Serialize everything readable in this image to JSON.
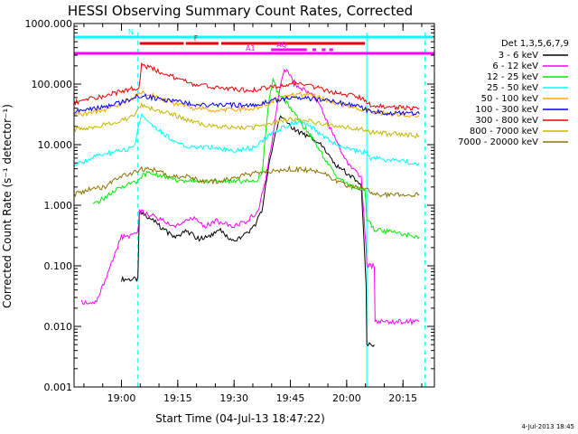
{
  "chart_data": {
    "type": "line",
    "title": "HESSI Observing Summary Count Rates, Corrected",
    "xlabel": "Start Time (04-Jul-13 18:47:22)",
    "ylabel": "Corrected Count Rate (s⁻¹ detector⁻¹)",
    "yscale": "log",
    "ylim": [
      0.001,
      1000
    ],
    "xlim_min": [
      0,
      96
    ],
    "y_ticks": [
      "0.001",
      "0.010",
      "0.100",
      "1.000",
      "10.000",
      "100.000",
      "1000.000"
    ],
    "x_ticks": [
      {
        "label": "19:00",
        "t": 12.63
      },
      {
        "label": "19:15",
        "t": 27.63
      },
      {
        "label": "19:30",
        "t": 42.63
      },
      {
        "label": "19:45",
        "t": 57.63
      },
      {
        "label": "20:00",
        "t": 72.63
      },
      {
        "label": "20:15",
        "t": 87.63
      }
    ],
    "legend_title": "Det 1,3,5,6,7,9",
    "legend_position": "right",
    "timestamp": "4-Jul-2013 18:45",
    "vertical_markers": [
      {
        "t": 17.0,
        "style": "dashed",
        "color": "#00ffff"
      },
      {
        "t": 78.0,
        "style": "solid",
        "color": "#00ffff"
      },
      {
        "t": 93.5,
        "style": "dashed",
        "color": "#00ffff"
      }
    ],
    "flags": [
      {
        "label": "N",
        "color": "#00ffff",
        "segments": [
          [
            0,
            17.5
          ],
          [
            17.5,
            78
          ],
          [
            78,
            95.5
          ]
        ]
      },
      {
        "label": "F",
        "color": "#ee0000",
        "segments": [
          [
            17.5,
            29.2
          ],
          [
            29.8,
            38.5
          ],
          [
            39.2,
            77.5
          ]
        ]
      },
      {
        "label": "AQ",
        "color": "#ff00ff",
        "segments": [
          [
            52.5,
            62
          ],
          [
            63.5,
            64.5
          ],
          [
            66,
            67
          ],
          [
            68,
            69
          ]
        ]
      },
      {
        "label": "A1",
        "color": "#ff00ff",
        "segments": [
          [
            0,
            96
          ]
        ]
      }
    ],
    "series": [
      {
        "name": "3 - 6 keV",
        "color": "#000000",
        "points": [
          [
            12.6,
            0.06
          ],
          [
            17,
            0.06
          ],
          [
            17.4,
            0.8
          ],
          [
            19,
            0.7
          ],
          [
            22,
            0.5
          ],
          [
            25,
            0.35
          ],
          [
            27,
            0.3
          ],
          [
            30,
            0.38
          ],
          [
            33,
            0.28
          ],
          [
            36,
            0.3
          ],
          [
            39,
            0.38
          ],
          [
            42,
            0.25
          ],
          [
            45,
            0.3
          ],
          [
            48,
            0.45
          ],
          [
            50,
            0.8
          ],
          [
            52,
            5
          ],
          [
            54,
            18
          ],
          [
            55,
            28
          ],
          [
            57,
            22
          ],
          [
            59,
            17
          ],
          [
            62,
            14
          ],
          [
            66,
            10
          ],
          [
            70,
            4.5
          ],
          [
            74,
            3
          ],
          [
            76.5,
            2.2
          ],
          [
            77.8,
            0.05
          ],
          [
            78,
            0.005
          ],
          [
            80,
            0.005
          ]
        ]
      },
      {
        "name": "6 - 12 keV",
        "color": "#ff00ff",
        "points": [
          [
            2,
            0.025
          ],
          [
            6,
            0.025
          ],
          [
            12.6,
            0.3
          ],
          [
            15,
            0.3
          ],
          [
            17,
            0.35
          ],
          [
            17.4,
            0.8
          ],
          [
            20,
            0.7
          ],
          [
            24,
            0.55
          ],
          [
            27,
            0.45
          ],
          [
            30,
            0.55
          ],
          [
            32,
            0.6
          ],
          [
            35,
            0.45
          ],
          [
            38,
            0.55
          ],
          [
            42,
            0.45
          ],
          [
            46,
            0.55
          ],
          [
            49,
            0.8
          ],
          [
            51,
            2.5
          ],
          [
            53,
            15
          ],
          [
            55,
            100
          ],
          [
            56,
            180
          ],
          [
            57,
            150
          ],
          [
            59,
            100
          ],
          [
            62,
            75
          ],
          [
            65,
            55
          ],
          [
            68,
            20
          ],
          [
            70,
            12
          ],
          [
            72,
            6
          ],
          [
            74,
            4
          ],
          [
            76.5,
            3
          ],
          [
            77.8,
            0.2
          ],
          [
            78,
            0.1
          ],
          [
            80,
            0.1
          ],
          [
            80.2,
            0.012
          ],
          [
            92,
            0.012
          ]
        ]
      },
      {
        "name": "12 - 25 keV",
        "color": "#00ee00",
        "points": [
          [
            5,
            1
          ],
          [
            12.6,
            2
          ],
          [
            17,
            2.5
          ],
          [
            18,
            3
          ],
          [
            20,
            3.5
          ],
          [
            24,
            3
          ],
          [
            28,
            2.5
          ],
          [
            32,
            2.5
          ],
          [
            36,
            2.5
          ],
          [
            40,
            2.5
          ],
          [
            44,
            2.5
          ],
          [
            48,
            2.5
          ],
          [
            50,
            3
          ],
          [
            52,
            60
          ],
          [
            53,
            120
          ],
          [
            54,
            80
          ],
          [
            56,
            55
          ],
          [
            58,
            38
          ],
          [
            60,
            25
          ],
          [
            63,
            14
          ],
          [
            66,
            7
          ],
          [
            70,
            3
          ],
          [
            74,
            2
          ],
          [
            77.5,
            1.8
          ],
          [
            78,
            0.6
          ],
          [
            80,
            0.4
          ],
          [
            85,
            0.35
          ],
          [
            92,
            0.3
          ]
        ]
      },
      {
        "name": "25 - 50 keV",
        "color": "#00ffff",
        "points": [
          [
            0,
            4.5
          ],
          [
            6,
            6.5
          ],
          [
            12.6,
            8
          ],
          [
            16,
            9
          ],
          [
            17.3,
            22
          ],
          [
            18,
            30
          ],
          [
            20,
            22
          ],
          [
            24,
            15
          ],
          [
            28,
            10
          ],
          [
            32,
            9
          ],
          [
            36,
            9
          ],
          [
            40,
            8.5
          ],
          [
            44,
            8
          ],
          [
            48,
            9
          ],
          [
            52,
            14
          ],
          [
            54,
            17
          ],
          [
            56,
            20
          ],
          [
            58,
            22
          ],
          [
            60,
            24
          ],
          [
            62,
            22
          ],
          [
            64,
            18
          ],
          [
            66,
            14
          ],
          [
            70,
            10
          ],
          [
            74,
            8
          ],
          [
            78,
            7.5
          ],
          [
            79,
            6
          ],
          [
            85,
            5.5
          ],
          [
            92,
            5
          ]
        ]
      },
      {
        "name": "50 - 100 keV",
        "color": "#ffa500",
        "points": [
          [
            0,
            30
          ],
          [
            6,
            35
          ],
          [
            12.6,
            45
          ],
          [
            15,
            55
          ],
          [
            17.3,
            70
          ],
          [
            18,
            75
          ],
          [
            20,
            68
          ],
          [
            24,
            55
          ],
          [
            28,
            45
          ],
          [
            32,
            40
          ],
          [
            36,
            38
          ],
          [
            40,
            38
          ],
          [
            44,
            38
          ],
          [
            48,
            40
          ],
          [
            52,
            48
          ],
          [
            55,
            58
          ],
          [
            58,
            65
          ],
          [
            61,
            68
          ],
          [
            64,
            64
          ],
          [
            67,
            55
          ],
          [
            70,
            48
          ],
          [
            74,
            42
          ],
          [
            77,
            38
          ],
          [
            79,
            35
          ],
          [
            85,
            32
          ],
          [
            92,
            30
          ]
        ]
      },
      {
        "name": "100 - 300 keV",
        "color": "#0000ee",
        "points": [
          [
            0,
            35
          ],
          [
            6,
            40
          ],
          [
            12.6,
            50
          ],
          [
            16,
            60
          ],
          [
            18,
            65
          ],
          [
            22,
            58
          ],
          [
            26,
            52
          ],
          [
            30,
            48
          ],
          [
            34,
            46
          ],
          [
            38,
            45
          ],
          [
            42,
            45
          ],
          [
            46,
            45
          ],
          [
            50,
            48
          ],
          [
            54,
            55
          ],
          [
            58,
            60
          ],
          [
            62,
            58
          ],
          [
            66,
            55
          ],
          [
            70,
            50
          ],
          [
            74,
            45
          ],
          [
            77,
            40
          ],
          [
            79,
            35
          ],
          [
            85,
            33
          ],
          [
            92,
            32
          ]
        ]
      },
      {
        "name": "300 - 800 keV",
        "color": "#ee0000",
        "points": [
          [
            0,
            50
          ],
          [
            6,
            60
          ],
          [
            12.6,
            75
          ],
          [
            16,
            85
          ],
          [
            17.3,
            90
          ],
          [
            18,
            200
          ],
          [
            20,
            190
          ],
          [
            24,
            150
          ],
          [
            28,
            120
          ],
          [
            32,
            100
          ],
          [
            36,
            90
          ],
          [
            40,
            85
          ],
          [
            44,
            80
          ],
          [
            48,
            80
          ],
          [
            52,
            88
          ],
          [
            55,
            95
          ],
          [
            58,
            100
          ],
          [
            61,
            98
          ],
          [
            64,
            90
          ],
          [
            67,
            80
          ],
          [
            70,
            72
          ],
          [
            74,
            65
          ],
          [
            77,
            58
          ],
          [
            79,
            45
          ],
          [
            85,
            42
          ],
          [
            92,
            40
          ]
        ]
      },
      {
        "name": "800 - 7000 keV",
        "color": "#c8b400",
        "points": [
          [
            0,
            18
          ],
          [
            6,
            20
          ],
          [
            12.6,
            25
          ],
          [
            16,
            30
          ],
          [
            17.3,
            40
          ],
          [
            18,
            45
          ],
          [
            22,
            38
          ],
          [
            26,
            32
          ],
          [
            30,
            26
          ],
          [
            34,
            22
          ],
          [
            38,
            20
          ],
          [
            42,
            19
          ],
          [
            46,
            19
          ],
          [
            50,
            20
          ],
          [
            54,
            24
          ],
          [
            58,
            26
          ],
          [
            62,
            25
          ],
          [
            66,
            22
          ],
          [
            70,
            20
          ],
          [
            74,
            19
          ],
          [
            77,
            18
          ],
          [
            79,
            16
          ],
          [
            85,
            15
          ],
          [
            92,
            14
          ]
        ]
      },
      {
        "name": "7000 - 20000 keV",
        "color": "#8b7300",
        "points": [
          [
            0,
            1.5
          ],
          [
            4,
            1.8
          ],
          [
            8,
            2
          ],
          [
            12.6,
            3
          ],
          [
            16,
            3.5
          ],
          [
            18,
            4
          ],
          [
            22,
            3.8
          ],
          [
            26,
            3
          ],
          [
            30,
            3
          ],
          [
            34,
            2.5
          ],
          [
            38,
            2.5
          ],
          [
            42,
            2.8
          ],
          [
            46,
            3.2
          ],
          [
            50,
            3.5
          ],
          [
            54,
            3.8
          ],
          [
            58,
            4
          ],
          [
            62,
            3.8
          ],
          [
            66,
            3.5
          ],
          [
            70,
            2.5
          ],
          [
            74,
            2
          ],
          [
            78,
            1.8
          ],
          [
            80,
            1.5
          ],
          [
            85,
            1.5
          ],
          [
            92,
            1.5
          ]
        ]
      }
    ]
  }
}
